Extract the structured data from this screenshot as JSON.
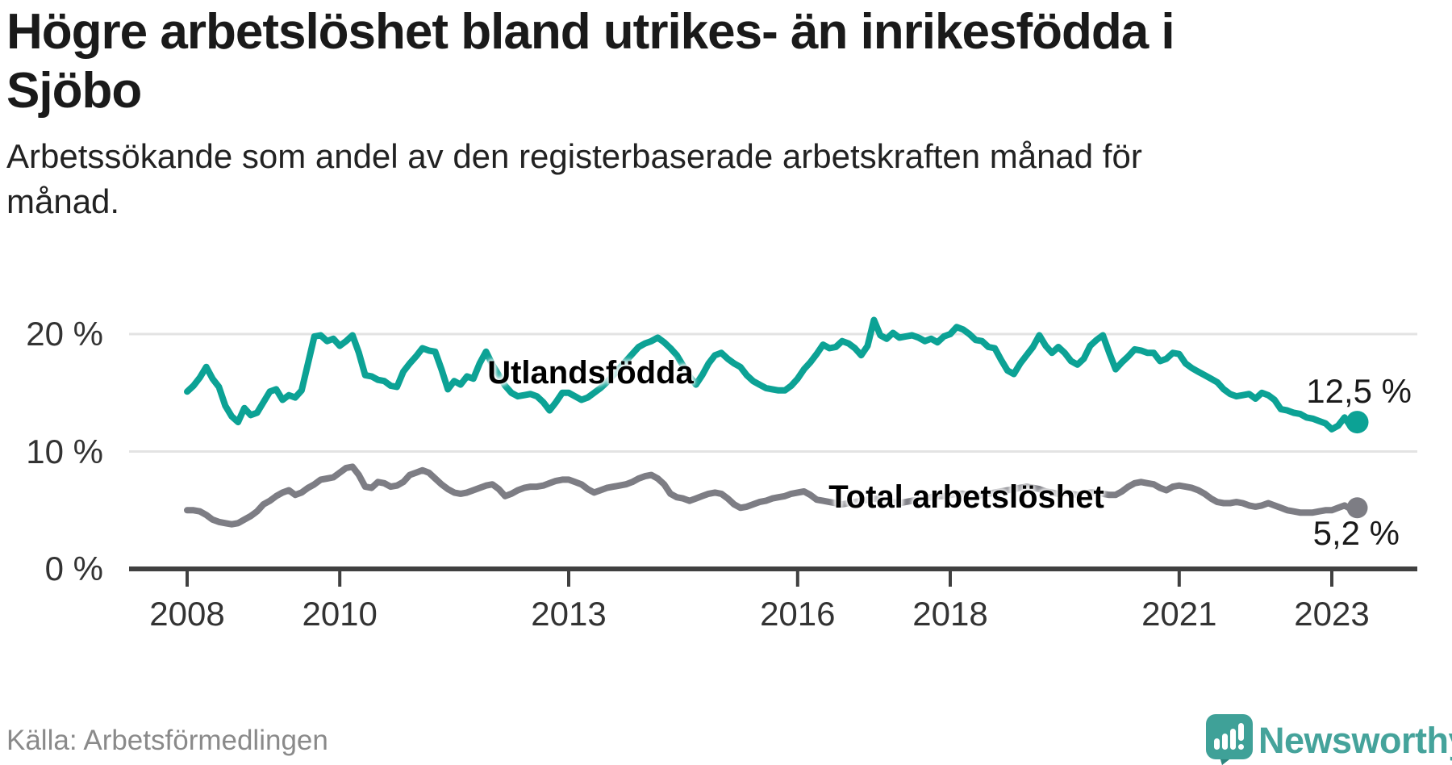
{
  "header": {
    "title": "Högre arbetslöshet bland utrikes- än inrikesfödda i Sjöbo",
    "subtitle": "Arbetssökande som andel av den registerbaserade arbetskraften månad för månad."
  },
  "footer": {
    "source": "Källa: Arbetsförmedlingen",
    "brand": "Newsworthy"
  },
  "colors": {
    "accent_teal": "#0CA295",
    "line_gray": "#7D7D84",
    "grid": "#E3E3E3",
    "axis": "#404040",
    "text_dark": "#1A1A1A",
    "text_muted": "#8A8A8A",
    "logo_teal": "#3FA198"
  },
  "chart_data": {
    "type": "line",
    "title": "Högre arbetslöshet bland utrikes- än inrikesfödda i Sjöbo",
    "subtitle": "Arbetssökande som andel av den registerbaserade arbetskraften månad för månad.",
    "xlabel": "",
    "ylabel": "",
    "frequency": "monthly",
    "x_start": "2008-01",
    "x_end": "2023-05",
    "grid": true,
    "legend_position": "inline-on-lines",
    "ylim": [
      0,
      25
    ],
    "x_axis_domain_years": [
      2007.25,
      2024.1
    ],
    "y_ticks": [
      {
        "value": 20,
        "label": "20 %"
      },
      {
        "value": 10,
        "label": "10 %"
      },
      {
        "value": 0,
        "label": "0 %"
      }
    ],
    "x_ticks": [
      {
        "year": 2008,
        "label": "2008"
      },
      {
        "year": 2010,
        "label": "2010"
      },
      {
        "year": 2013,
        "label": "2013"
      },
      {
        "year": 2016,
        "label": "2016"
      },
      {
        "year": 2018,
        "label": "2018"
      },
      {
        "year": 2021,
        "label": "2021"
      },
      {
        "year": 2023,
        "label": "2023"
      }
    ],
    "series": [
      {
        "name": "Utlandsfödda",
        "color": "#0CA295",
        "end_value": 12.5,
        "end_label": "12,5 %",
        "values": [
          15.1,
          15.6,
          16.3,
          17.2,
          16.2,
          15.5,
          13.9,
          13.0,
          12.5,
          13.7,
          13.1,
          13.3,
          14.2,
          15.1,
          15.3,
          14.4,
          14.8,
          14.6,
          15.2,
          17.5,
          19.8,
          19.9,
          19.4,
          19.6,
          19.0,
          19.4,
          19.9,
          18.4,
          16.5,
          16.4,
          16.1,
          16.0,
          15.6,
          15.5,
          16.8,
          17.5,
          18.1,
          18.8,
          18.6,
          18.5,
          17.0,
          15.3,
          16.0,
          15.7,
          16.4,
          16.2,
          17.5,
          18.5,
          17.4,
          16.5,
          15.6,
          15.0,
          14.7,
          14.8,
          14.9,
          14.7,
          14.2,
          13.5,
          14.2,
          15.0,
          15.0,
          14.7,
          14.4,
          14.6,
          15.0,
          15.4,
          15.9,
          16.5,
          17.1,
          17.7,
          18.3,
          18.9,
          19.2,
          19.4,
          19.7,
          19.3,
          18.8,
          18.2,
          17.3,
          16.4,
          15.7,
          16.5,
          17.5,
          18.2,
          18.4,
          17.9,
          17.5,
          17.2,
          16.5,
          16.0,
          15.7,
          15.4,
          15.3,
          15.2,
          15.2,
          15.6,
          16.2,
          17.0,
          17.6,
          18.3,
          19.1,
          18.8,
          18.9,
          19.4,
          19.2,
          18.8,
          18.2,
          19.0,
          21.2,
          19.9,
          19.6,
          20.1,
          19.7,
          19.8,
          19.9,
          19.7,
          19.4,
          19.6,
          19.3,
          19.8,
          20.0,
          20.6,
          20.4,
          20.0,
          19.5,
          19.4,
          18.9,
          18.8,
          17.8,
          16.9,
          16.6,
          17.5,
          18.2,
          18.9,
          19.9,
          19.0,
          18.4,
          18.9,
          18.4,
          17.7,
          17.4,
          17.9,
          19.0,
          19.5,
          19.9,
          18.4,
          17.0,
          17.6,
          18.1,
          18.7,
          18.6,
          18.4,
          18.4,
          17.7,
          17.9,
          18.4,
          18.3,
          17.5,
          17.1,
          16.8,
          16.5,
          16.2,
          15.9,
          15.3,
          14.9,
          14.7,
          14.8,
          14.9,
          14.5,
          15.0,
          14.8,
          14.4,
          13.6,
          13.5,
          13.3,
          13.2,
          12.9,
          12.8,
          12.6,
          12.4,
          11.9,
          12.2,
          12.9,
          12.1,
          12.5
        ]
      },
      {
        "name": "Total arbetslöshet",
        "color": "#7D7D84",
        "end_value": 5.2,
        "end_label": "5,2 %",
        "values": [
          5.0,
          5.0,
          4.9,
          4.6,
          4.2,
          4.0,
          3.9,
          3.8,
          3.9,
          4.2,
          4.5,
          4.9,
          5.5,
          5.8,
          6.2,
          6.5,
          6.7,
          6.3,
          6.5,
          6.9,
          7.2,
          7.6,
          7.7,
          7.8,
          8.2,
          8.6,
          8.7,
          8.0,
          7.0,
          6.9,
          7.4,
          7.3,
          7.0,
          7.1,
          7.4,
          8.0,
          8.2,
          8.4,
          8.2,
          7.7,
          7.2,
          6.8,
          6.5,
          6.4,
          6.5,
          6.7,
          6.9,
          7.1,
          7.2,
          6.8,
          6.2,
          6.4,
          6.7,
          6.9,
          7.0,
          7.0,
          7.1,
          7.3,
          7.5,
          7.6,
          7.6,
          7.4,
          7.2,
          6.8,
          6.5,
          6.7,
          6.9,
          7.0,
          7.1,
          7.2,
          7.4,
          7.7,
          7.9,
          8.0,
          7.7,
          7.2,
          6.4,
          6.1,
          6.0,
          5.8,
          6.0,
          6.2,
          6.4,
          6.5,
          6.4,
          6.0,
          5.5,
          5.2,
          5.3,
          5.5,
          5.7,
          5.8,
          6.0,
          6.1,
          6.2,
          6.4,
          6.5,
          6.6,
          6.3,
          5.9,
          5.8,
          5.7,
          5.6,
          5.5,
          5.6,
          5.7,
          5.8,
          5.9,
          6.0,
          5.9,
          5.8,
          5.7,
          5.6,
          5.7,
          5.8,
          5.9,
          6.0,
          6.1,
          6.2,
          6.2,
          6.3,
          6.4,
          6.4,
          6.3,
          6.2,
          6.3,
          6.4,
          6.5,
          6.6,
          6.7,
          6.8,
          6.9,
          7.0,
          6.9,
          6.8,
          6.6,
          6.5,
          6.4,
          6.5,
          6.4,
          6.3,
          6.4,
          6.5,
          6.5,
          6.4,
          6.3,
          6.3,
          6.6,
          7.0,
          7.3,
          7.4,
          7.3,
          7.2,
          6.9,
          6.7,
          7.0,
          7.1,
          7.0,
          6.9,
          6.7,
          6.4,
          6.0,
          5.7,
          5.6,
          5.6,
          5.7,
          5.6,
          5.4,
          5.3,
          5.4,
          5.6,
          5.4,
          5.2,
          5.0,
          4.9,
          4.8,
          4.8,
          4.8,
          4.9,
          5.0,
          5.0,
          5.2,
          5.4,
          5.1,
          5.2
        ]
      }
    ]
  }
}
